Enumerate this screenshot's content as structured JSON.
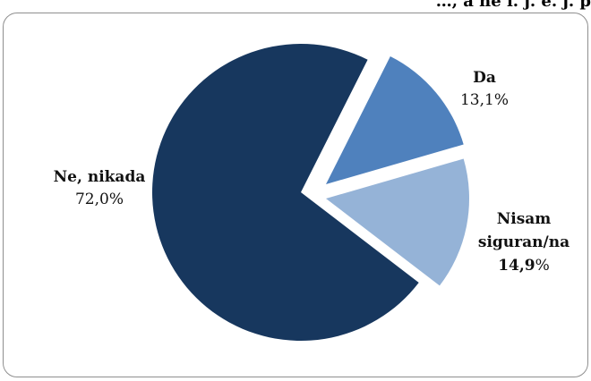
{
  "header_fragment": "…, a ne i. j. e. j. p",
  "chart_data": {
    "type": "pie",
    "title": "",
    "exploded": true,
    "slices": [
      {
        "label": "Da",
        "value": 13.1,
        "value_text": "13,1%",
        "color": "#4f81bd"
      },
      {
        "label": "Nisam siguran/na",
        "value": 14.9,
        "value_text": "14,9%",
        "color": "#95b3d7"
      },
      {
        "label": "Ne, nikada",
        "value": 72.0,
        "value_text": "72,0%",
        "color": "#17375e"
      }
    ],
    "labels": {
      "da": {
        "name": "Da",
        "value": "13,1%"
      },
      "nisam": {
        "name_line1": "Nisam",
        "name_line2": "siguran/na",
        "value_bold": "14,9",
        "value_suffix": "%"
      },
      "ne": {
        "name": "Ne, nikada",
        "value": "72,0%"
      }
    }
  }
}
